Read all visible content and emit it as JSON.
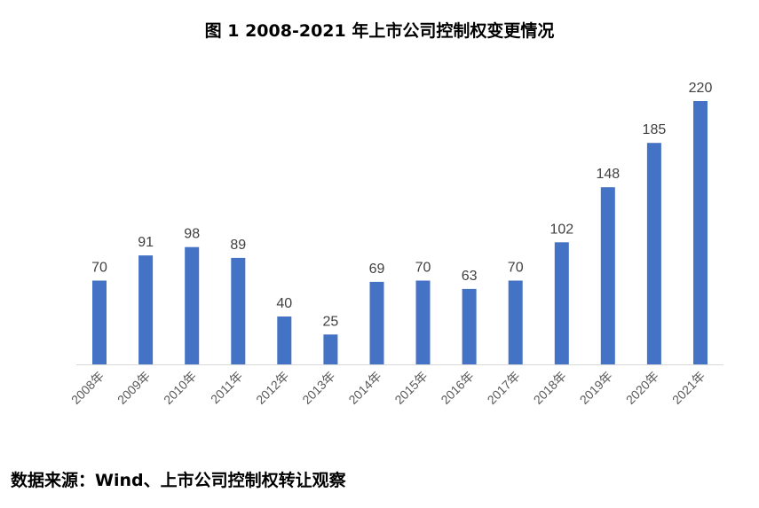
{
  "title": "图 1 2008-2021 年上市公司控制权变更情况",
  "source": "数据来源：Wind、上市公司控制权转让观察",
  "chart_data": {
    "type": "bar",
    "title": "图 1 2008-2021 年上市公司控制权变更情况",
    "xlabel": "",
    "ylabel": "",
    "categories": [
      "2008年",
      "2009年",
      "2010年",
      "2011年",
      "2012年",
      "2013年",
      "2014年",
      "2015年",
      "2016年",
      "2017年",
      "2018年",
      "2019年",
      "2020年",
      "2021年"
    ],
    "values": [
      70,
      91,
      98,
      89,
      40,
      25,
      69,
      70,
      63,
      70,
      102,
      148,
      185,
      220
    ],
    "ylim": [
      0,
      220
    ],
    "grid": false,
    "legend": "none",
    "bar_color": "#4472C4",
    "axis_color": "#D9D9D9"
  }
}
